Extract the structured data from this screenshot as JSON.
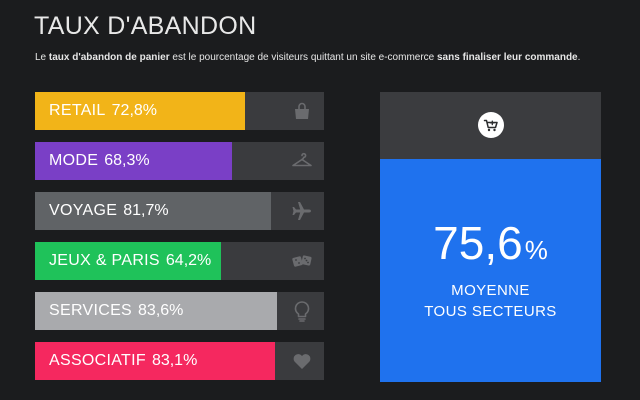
{
  "header": {
    "title": "TAUX D'ABANDON",
    "subtitle_parts": [
      {
        "text": "Le ",
        "bold": false
      },
      {
        "text": "taux d'abandon de panier",
        "bold": true
      },
      {
        "text": " est le pourcentage de visiteurs quittant un site e-commerce ",
        "bold": false
      },
      {
        "text": "sans finaliser leur commande",
        "bold": true
      },
      {
        "text": ".",
        "bold": false
      }
    ]
  },
  "chart_data": {
    "type": "bar",
    "orientation": "horizontal",
    "categories": [
      "RETAIL",
      "MODE",
      "VOYAGE",
      "JEUX & PARIS",
      "SERVICES",
      "ASSOCIATIF"
    ],
    "values": [
      72.8,
      68.3,
      81.7,
      64.2,
      83.6,
      83.1
    ],
    "value_labels": [
      "72,8%",
      "68,3%",
      "81,7%",
      "64,2%",
      "83,6%",
      "83,1%"
    ],
    "colors": [
      "#f2b418",
      "#7a3fc6",
      "#606366",
      "#1fc25a",
      "#a9aaad",
      "#f5285f"
    ],
    "icons": [
      "handbag-icon",
      "hanger-icon",
      "airplane-icon",
      "dice-icon",
      "lightbulb-icon",
      "heart-icon"
    ],
    "xlim": [
      0,
      100
    ],
    "track_color": "#3a3b3e"
  },
  "average": {
    "icon": "shopping-cart-icon",
    "value": "75,6",
    "unit": "%",
    "label_line1": "MOYENNE",
    "label_line2": "TOUS SECTEURS",
    "color": "#1f72ee"
  }
}
